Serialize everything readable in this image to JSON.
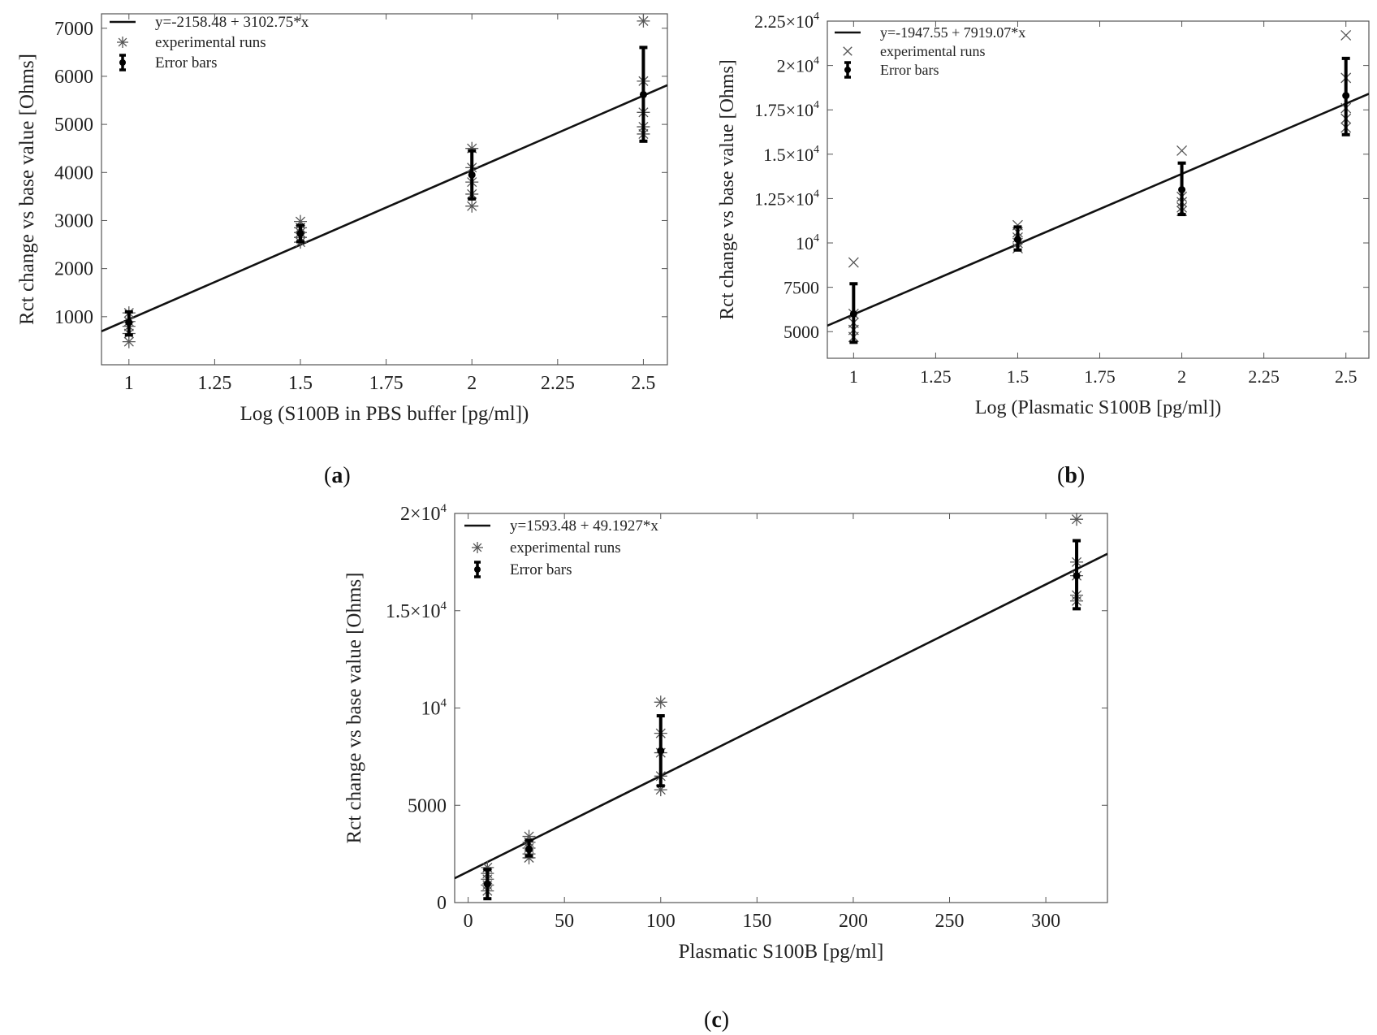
{
  "chart_data": [
    {
      "id": "a",
      "type": "scatter",
      "panel_label": "a",
      "xlabel": "Log (S100B in PBS buffer [pg/ml])",
      "ylabel": "Rct change vs base value [Ohms]",
      "xlim": [
        0.92,
        2.57
      ],
      "ylim": [
        0,
        7300
      ],
      "xticks": [
        1,
        1.25,
        1.5,
        1.75,
        2,
        2.25,
        2.5
      ],
      "xtick_labels": [
        "1",
        "1.25",
        "1.5",
        "1.75",
        "2",
        "2.25",
        "2.5"
      ],
      "yticks": [
        1000,
        2000,
        3000,
        4000,
        5000,
        6000,
        7000
      ],
      "ytick_labels": [
        "1000",
        "2000",
        "3000",
        "4000",
        "5000",
        "6000",
        "7000"
      ],
      "fit": {
        "intercept": -2158.48,
        "slope": 3102.75
      },
      "legend": {
        "position": "top-left",
        "entries": [
          "y=-2158.48 + 3102.75*x",
          "experimental runs",
          "Error bars"
        ]
      },
      "marker": "asterisk",
      "runs": [
        {
          "x": 1,
          "y": 480
        },
        {
          "x": 1,
          "y": 650
        },
        {
          "x": 1,
          "y": 800
        },
        {
          "x": 1,
          "y": 900
        },
        {
          "x": 1,
          "y": 1080
        },
        {
          "x": 1.5,
          "y": 2550
        },
        {
          "x": 1.5,
          "y": 2650
        },
        {
          "x": 1.5,
          "y": 2750
        },
        {
          "x": 1.5,
          "y": 2850
        },
        {
          "x": 1.5,
          "y": 2980
        },
        {
          "x": 2,
          "y": 3300
        },
        {
          "x": 2,
          "y": 3550
        },
        {
          "x": 2,
          "y": 3800
        },
        {
          "x": 2,
          "y": 4100
        },
        {
          "x": 2,
          "y": 4500
        },
        {
          "x": 2.5,
          "y": 4800
        },
        {
          "x": 2.5,
          "y": 4950
        },
        {
          "x": 2.5,
          "y": 5250
        },
        {
          "x": 2.5,
          "y": 5900
        },
        {
          "x": 2.5,
          "y": 7150
        }
      ],
      "error_bars": [
        {
          "x": 1,
          "mean": 880,
          "low": 620,
          "high": 1100
        },
        {
          "x": 1.5,
          "mean": 2730,
          "low": 2560,
          "high": 2900
        },
        {
          "x": 2,
          "mean": 3950,
          "low": 3450,
          "high": 4450
        },
        {
          "x": 2.5,
          "mean": 5620,
          "low": 4650,
          "high": 6600
        }
      ]
    },
    {
      "id": "b",
      "type": "scatter",
      "panel_label": "b",
      "xlabel": "Log (Plasmatic S100B [pg/ml])",
      "ylabel": "Rct change vs base value [Ohms]",
      "xlim": [
        0.92,
        2.57
      ],
      "ylim": [
        3500,
        22500
      ],
      "xticks": [
        1,
        1.25,
        1.5,
        1.75,
        2,
        2.25,
        2.5
      ],
      "xtick_labels": [
        "1",
        "1.25",
        "1.5",
        "1.75",
        "2",
        "2.25",
        "2.5"
      ],
      "yticks": [
        5000,
        7500,
        10000,
        12500,
        15000,
        17500,
        20000,
        22500
      ],
      "ytick_labels": [
        {
          "base": "5000",
          "exp": ""
        },
        {
          "base": "7500",
          "exp": ""
        },
        {
          "base": "10",
          "exp": "4"
        },
        {
          "base": "1.25×10",
          "exp": "4"
        },
        {
          "base": "1.5×10",
          "exp": "4"
        },
        {
          "base": "1.75×10",
          "exp": "4"
        },
        {
          "base": "2×10",
          "exp": "4"
        },
        {
          "base": "2.25×10",
          "exp": "4"
        }
      ],
      "fit": {
        "intercept": -1947.55,
        "slope": 7919.07
      },
      "legend": {
        "position": "top-left",
        "entries": [
          "y=-1947.55 + 7919.07*x",
          "experimental runs",
          "Error bars"
        ]
      },
      "marker": "cross",
      "runs": [
        {
          "x": 1,
          "y": 4700
        },
        {
          "x": 1,
          "y": 5100
        },
        {
          "x": 1,
          "y": 5500
        },
        {
          "x": 1,
          "y": 6000
        },
        {
          "x": 1,
          "y": 8900
        },
        {
          "x": 1.5,
          "y": 9700
        },
        {
          "x": 1.5,
          "y": 10000
        },
        {
          "x": 1.5,
          "y": 10300
        },
        {
          "x": 1.5,
          "y": 10600
        },
        {
          "x": 1.5,
          "y": 11000
        },
        {
          "x": 2,
          "y": 11800
        },
        {
          "x": 2,
          "y": 12000
        },
        {
          "x": 2,
          "y": 12300
        },
        {
          "x": 2,
          "y": 12600
        },
        {
          "x": 2,
          "y": 15200
        },
        {
          "x": 2.5,
          "y": 16500
        },
        {
          "x": 2.5,
          "y": 17000
        },
        {
          "x": 2.5,
          "y": 17600
        },
        {
          "x": 2.5,
          "y": 19300
        },
        {
          "x": 2.5,
          "y": 21700
        }
      ],
      "error_bars": [
        {
          "x": 1,
          "mean": 6000,
          "low": 4400,
          "high": 7700
        },
        {
          "x": 1.5,
          "mean": 10200,
          "low": 9600,
          "high": 10900
        },
        {
          "x": 2,
          "mean": 13000,
          "low": 11600,
          "high": 14500
        },
        {
          "x": 2.5,
          "mean": 18300,
          "low": 16100,
          "high": 20400
        }
      ]
    },
    {
      "id": "c",
      "type": "scatter",
      "panel_label": "c",
      "xlabel": "Plasmatic S100B [pg/ml]",
      "ylabel": "Rct change vs base value [Ohms]",
      "xlim": [
        -7,
        332
      ],
      "ylim": [
        0,
        20000
      ],
      "xticks": [
        0,
        50,
        100,
        150,
        200,
        250,
        300
      ],
      "xtick_labels": [
        "0",
        "50",
        "100",
        "150",
        "200",
        "250",
        "300"
      ],
      "yticks": [
        0,
        5000,
        10000,
        15000,
        20000
      ],
      "ytick_labels": [
        {
          "base": "0",
          "exp": ""
        },
        {
          "base": "5000",
          "exp": ""
        },
        {
          "base": "10",
          "exp": "4"
        },
        {
          "base": "1.5×10",
          "exp": "4"
        },
        {
          "base": "2×10",
          "exp": "4"
        }
      ],
      "fit": {
        "intercept": 1593.48,
        "slope": 49.1927
      },
      "legend": {
        "position": "top-left",
        "entries": [
          "y=1593.48 + 49.1927*x",
          "experimental runs",
          "Error bars"
        ]
      },
      "marker": "asterisk",
      "runs": [
        {
          "x": 10,
          "y": 600
        },
        {
          "x": 10,
          "y": 900
        },
        {
          "x": 10,
          "y": 1200
        },
        {
          "x": 10,
          "y": 1500
        },
        {
          "x": 10,
          "y": 1800
        },
        {
          "x": 31.6,
          "y": 2300
        },
        {
          "x": 31.6,
          "y": 2500
        },
        {
          "x": 31.6,
          "y": 2800
        },
        {
          "x": 31.6,
          "y": 3100
        },
        {
          "x": 31.6,
          "y": 3400
        },
        {
          "x": 100,
          "y": 5800
        },
        {
          "x": 100,
          "y": 6500
        },
        {
          "x": 100,
          "y": 7700
        },
        {
          "x": 100,
          "y": 8700
        },
        {
          "x": 100,
          "y": 10300
        },
        {
          "x": 316,
          "y": 15500
        },
        {
          "x": 316,
          "y": 15800
        },
        {
          "x": 316,
          "y": 16800
        },
        {
          "x": 316,
          "y": 17500
        },
        {
          "x": 316,
          "y": 19700
        }
      ],
      "error_bars": [
        {
          "x": 10,
          "mean": 950,
          "low": 200,
          "high": 1700
        },
        {
          "x": 31.6,
          "mean": 2750,
          "low": 2400,
          "high": 3200
        },
        {
          "x": 100,
          "mean": 7800,
          "low": 6000,
          "high": 9600
        },
        {
          "x": 316,
          "mean": 16800,
          "low": 15100,
          "high": 18600
        }
      ]
    }
  ]
}
